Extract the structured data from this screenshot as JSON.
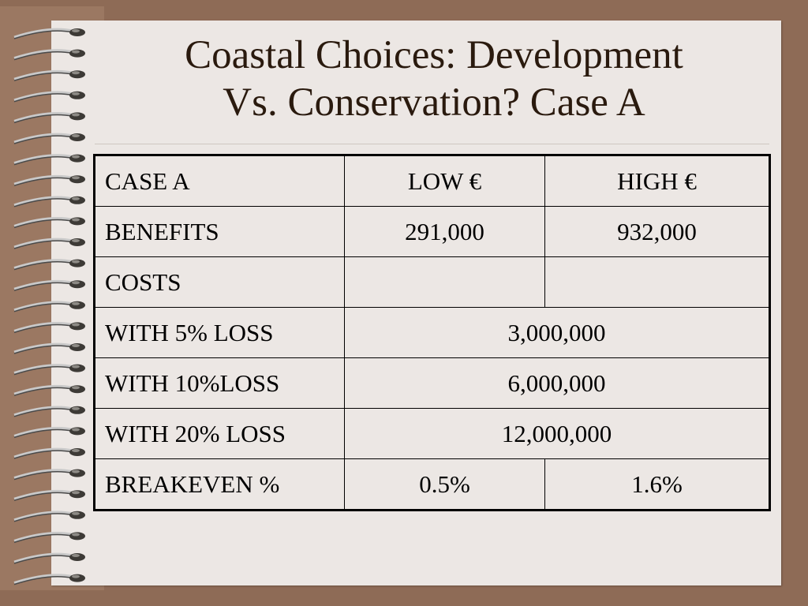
{
  "slide": {
    "title_line1": "Coastal Choices: Development",
    "title_line2": "Vs. Conservation? Case A"
  },
  "table": {
    "header": [
      "CASE A",
      "LOW €",
      "HIGH €"
    ],
    "benefits": {
      "label": "BENEFITS",
      "low": "291,000",
      "high": "932,000"
    },
    "costs": {
      "label": "COSTS",
      "low": "",
      "high": ""
    },
    "loss5": {
      "label": "WITH 5% LOSS",
      "value": "3,000,000"
    },
    "loss10": {
      "label": "WITH 10%LOSS",
      "value": "6,000,000"
    },
    "loss20": {
      "label": "WITH 20% LOSS",
      "value": "12,000,000"
    },
    "breakeven": {
      "label": "BREAKEVEN %",
      "low": "0.5%",
      "high": "1.6%"
    }
  },
  "colors": {
    "background": "#8e6b56",
    "page": "#ece7e4",
    "title": "#2a1a0e"
  },
  "decor": {
    "binding": "spiral-binding-icon"
  }
}
